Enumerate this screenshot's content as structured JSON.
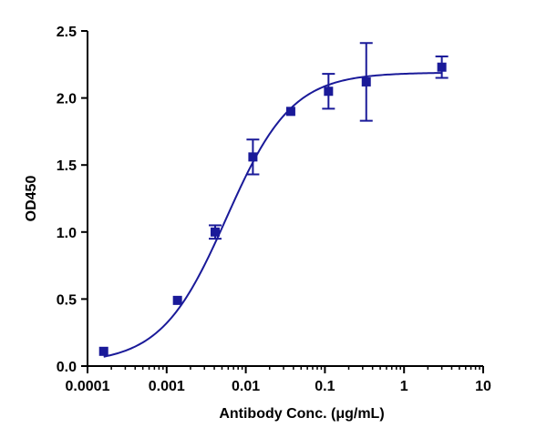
{
  "chart_data": {
    "type": "scatter",
    "xlabel": "Antibody Conc. (μg/mL)",
    "ylabel": "OD450",
    "xscale": "log",
    "xlim": [
      0.0001,
      10
    ],
    "ylim": [
      0,
      2.5
    ],
    "x_ticks": [
      0.0001,
      0.001,
      0.01,
      0.1,
      1,
      10
    ],
    "x_tick_labels": [
      "0.0001",
      "0.001",
      "0.01",
      "0.1",
      "1",
      "10"
    ],
    "y_ticks": [
      0,
      0.5,
      1,
      1.5,
      2,
      2.5
    ],
    "y_tick_labels": [
      "0.0",
      "0.5",
      "1.0",
      "1.5",
      "2.0",
      "2.5"
    ],
    "grid": false,
    "legend": "none",
    "series": [
      {
        "color": "#1a1a99",
        "marker": "square",
        "points": [
          {
            "x": 0.00016,
            "y": 0.11,
            "err": 0.0
          },
          {
            "x": 0.00137,
            "y": 0.49,
            "err": 0.0
          },
          {
            "x": 0.0041,
            "y": 1.0,
            "err": 0.05
          },
          {
            "x": 0.0123,
            "y": 1.56,
            "err": 0.13
          },
          {
            "x": 0.037,
            "y": 1.9,
            "err": 0.0
          },
          {
            "x": 0.111,
            "y": 2.05,
            "err": 0.13
          },
          {
            "x": 0.333,
            "y": 2.12,
            "err": 0.29
          },
          {
            "x": 3.0,
            "y": 2.23,
            "err": 0.08
          }
        ],
        "fit": {
          "model": "4PL",
          "bottom": 0.02,
          "top": 2.19,
          "ec50": 0.0057,
          "hill": 1.05
        }
      }
    ]
  }
}
